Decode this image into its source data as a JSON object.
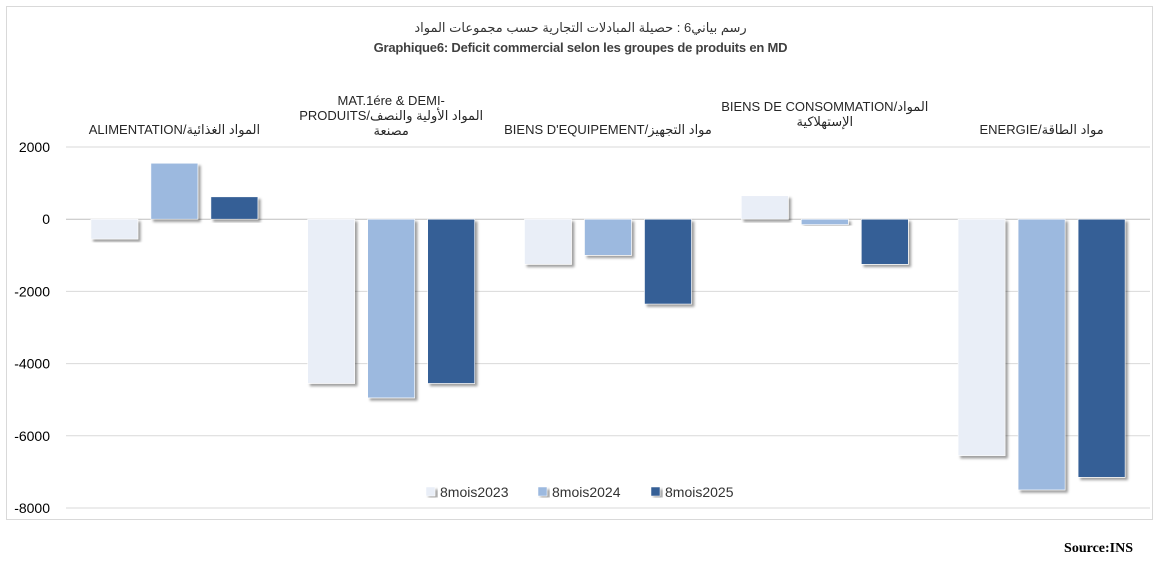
{
  "chart_data": {
    "type": "bar",
    "title": "رسم بياني6 :  حصيلة المبادلات  التجارية حسب مجموعات المواد",
    "subtitle": "Graphique6: Deficit commercial selon les groupes de produits en MD",
    "categories": [
      [
        "ALIMENTATION/المواد الغذائية"
      ],
      [
        "MAT.1ére & DEMI-",
        "PRODUITS/المواد الأولية والنصف",
        "مصنعة"
      ],
      [
        "BIENS D'EQUIPEMENT/مواد التجهيز"
      ],
      [
        "BIENS DE CONSOMMATION/المواد",
        "الإستهلاكية"
      ],
      [
        "ENERGIE/مواد الطاقة"
      ]
    ],
    "series": [
      {
        "name": "8mois2023",
        "values": [
          -550,
          -4550,
          -1250,
          650,
          -6550
        ],
        "color": "#e9eef7"
      },
      {
        "name": "8mois2024",
        "values": [
          1550,
          -4950,
          -1000,
          -150,
          -7500
        ],
        "color": "#9cb9df"
      },
      {
        "name": "8mois2025",
        "values": [
          620,
          -4550,
          -2350,
          -1250,
          -7150
        ],
        "color": "#365f96"
      }
    ],
    "ylim": [
      -8000,
      2000
    ],
    "yticks": [
      2000,
      0,
      -2000,
      -4000,
      -6000,
      -8000
    ],
    "ytick_labels": [
      "2000",
      "0",
      "-2000",
      "-4000",
      "-6000",
      "-8000"
    ],
    "grid": true,
    "legend_position": "bottom-center",
    "xlabel": "",
    "ylabel": ""
  },
  "source": "Source:INS"
}
